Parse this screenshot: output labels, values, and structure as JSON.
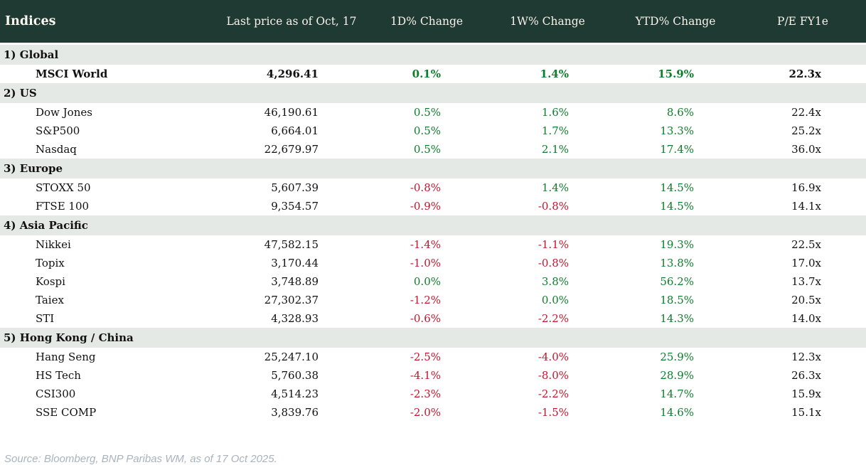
{
  "colors": {
    "header_bg": "#1e3a33",
    "header_text": "#f7f3ea",
    "section_row_bg": "#e4e9e6",
    "positive_green": "#0e7d2b",
    "negative_red": "#c1162c",
    "body_text": "#111111",
    "source_text": "#a9b3bc"
  },
  "header": {
    "title": "Indices"
  },
  "footer": {
    "source": "Source: Bloomberg, BNP Paribas WM, as of 17 Oct 2025."
  },
  "chart_data": {
    "type": "table",
    "title": "Indices",
    "columns": [
      "Last price as of Oct, 17",
      "1D% Change",
      "1W% Change",
      "YTD% Change",
      "P/E FY1e"
    ],
    "sections": [
      {
        "label": "1) Global",
        "rows": [
          {
            "name": "MSCI World",
            "price": "4,296.41",
            "d1": "0.1%",
            "d1_dir": "pos",
            "w1": "1.4%",
            "w1_dir": "pos",
            "ytd": "15.9%",
            "ytd_dir": "pos",
            "pe": "22.3x",
            "bold": true
          }
        ]
      },
      {
        "label": "2) US",
        "rows": [
          {
            "name": "Dow Jones",
            "price": "46,190.61",
            "d1": "0.5%",
            "d1_dir": "pos",
            "w1": "1.6%",
            "w1_dir": "pos",
            "ytd": "8.6%",
            "ytd_dir": "pos",
            "pe": "22.4x"
          },
          {
            "name": "S&P500",
            "price": "6,664.01",
            "d1": "0.5%",
            "d1_dir": "pos",
            "w1": "1.7%",
            "w1_dir": "pos",
            "ytd": "13.3%",
            "ytd_dir": "pos",
            "pe": "25.2x"
          },
          {
            "name": "Nasdaq",
            "price": "22,679.97",
            "d1": "0.5%",
            "d1_dir": "pos",
            "w1": "2.1%",
            "w1_dir": "pos",
            "ytd": "17.4%",
            "ytd_dir": "pos",
            "pe": "36.0x"
          }
        ]
      },
      {
        "label": "3) Europe",
        "rows": [
          {
            "name": "STOXX 50",
            "price": "5,607.39",
            "d1": "-0.8%",
            "d1_dir": "neg",
            "w1": "1.4%",
            "w1_dir": "pos",
            "ytd": "14.5%",
            "ytd_dir": "pos",
            "pe": "16.9x"
          },
          {
            "name": "FTSE 100",
            "price": "9,354.57",
            "d1": "-0.9%",
            "d1_dir": "neg",
            "w1": "-0.8%",
            "w1_dir": "neg",
            "ytd": "14.5%",
            "ytd_dir": "pos",
            "pe": "14.1x"
          }
        ]
      },
      {
        "label": "4) Asia Pacific",
        "rows": [
          {
            "name": "Nikkei",
            "price": "47,582.15",
            "d1": "-1.4%",
            "d1_dir": "neg",
            "w1": "-1.1%",
            "w1_dir": "neg",
            "ytd": "19.3%",
            "ytd_dir": "pos",
            "pe": "22.5x"
          },
          {
            "name": "Topix",
            "price": "3,170.44",
            "d1": "-1.0%",
            "d1_dir": "neg",
            "w1": "-0.8%",
            "w1_dir": "neg",
            "ytd": "13.8%",
            "ytd_dir": "pos",
            "pe": "17.0x"
          },
          {
            "name": "Kospi",
            "price": "3,748.89",
            "d1": "0.0%",
            "d1_dir": "pos",
            "w1": "3.8%",
            "w1_dir": "pos",
            "ytd": "56.2%",
            "ytd_dir": "pos",
            "pe": "13.7x"
          },
          {
            "name": "Taiex",
            "price": "27,302.37",
            "d1": "-1.2%",
            "d1_dir": "neg",
            "w1": "0.0%",
            "w1_dir": "pos",
            "ytd": "18.5%",
            "ytd_dir": "pos",
            "pe": "20.5x"
          },
          {
            "name": "STI",
            "price": "4,328.93",
            "d1": "-0.6%",
            "d1_dir": "neg",
            "w1": "-2.2%",
            "w1_dir": "neg",
            "ytd": "14.3%",
            "ytd_dir": "pos",
            "pe": "14.0x"
          }
        ]
      },
      {
        "label": "5) Hong Kong / China",
        "rows": [
          {
            "name": "Hang Seng",
            "price": "25,247.10",
            "d1": "-2.5%",
            "d1_dir": "neg",
            "w1": "-4.0%",
            "w1_dir": "neg",
            "ytd": "25.9%",
            "ytd_dir": "pos",
            "pe": "12.3x"
          },
          {
            "name": "HS Tech",
            "price": "5,760.38",
            "d1": "-4.1%",
            "d1_dir": "neg",
            "w1": "-8.0%",
            "w1_dir": "neg",
            "ytd": "28.9%",
            "ytd_dir": "pos",
            "pe": "26.3x"
          },
          {
            "name": "CSI300",
            "price": "4,514.23",
            "d1": "-2.3%",
            "d1_dir": "neg",
            "w1": "-2.2%",
            "w1_dir": "neg",
            "ytd": "14.7%",
            "ytd_dir": "pos",
            "pe": "15.9x"
          },
          {
            "name": "SSE COMP",
            "price": "3,839.76",
            "d1": "-2.0%",
            "d1_dir": "neg",
            "w1": "-1.5%",
            "w1_dir": "neg",
            "ytd": "14.6%",
            "ytd_dir": "pos",
            "pe": "15.1x"
          }
        ]
      }
    ]
  }
}
